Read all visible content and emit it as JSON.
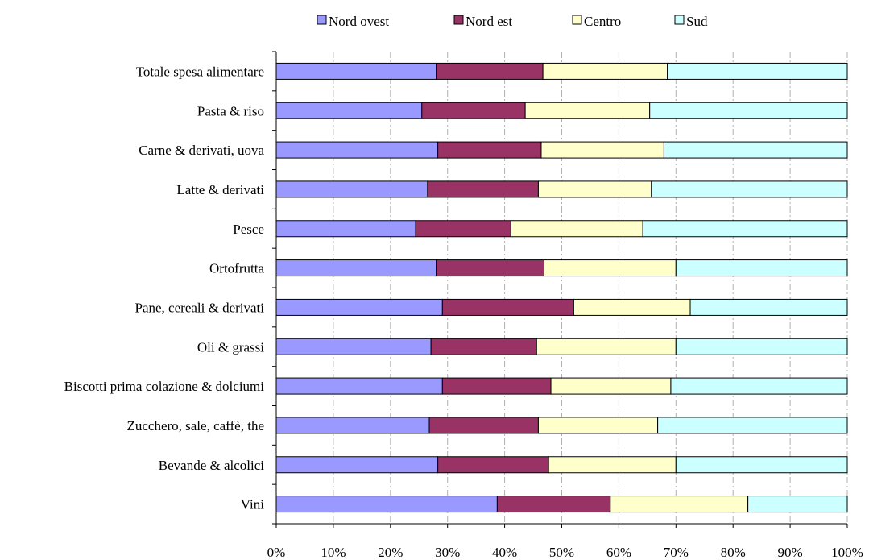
{
  "chart_data": {
    "type": "bar",
    "orientation": "horizontal",
    "stacked": "percent",
    "categories": [
      "Totale spesa alimentare",
      "Pasta & riso",
      "Carne & derivati, uova",
      "Latte & derivati",
      "Pesce",
      "Ortofrutta",
      "Pane, cereali & derivati",
      "Oli & grassi",
      "Biscotti prima colazione & dolciumi",
      "Zucchero, sale, caffè, the",
      "Bevande & alcolici",
      "Vini"
    ],
    "series": [
      {
        "name": "Nord ovest",
        "color": "#9999ff",
        "values": [
          28,
          25.5,
          28.3,
          26.5,
          24.4,
          28,
          29.1,
          27.1,
          29.1,
          26.8,
          28.3,
          38.7
        ]
      },
      {
        "name": "Nord est",
        "color": "#993366",
        "values": [
          18.7,
          18.1,
          18.1,
          19.4,
          16.7,
          18.9,
          23,
          18.5,
          19,
          19.1,
          19.4,
          19.8
        ]
      },
      {
        "name": "Centro",
        "color": "#ffffcc",
        "values": [
          21.8,
          21.8,
          21.5,
          19.8,
          23.1,
          23.1,
          20.4,
          24.4,
          21,
          20.9,
          22.3,
          24.1
        ]
      },
      {
        "name": "Sud",
        "color": "#ccffff",
        "values": [
          31.5,
          34.6,
          32.1,
          34.3,
          35.8,
          30,
          27.5,
          30,
          30.9,
          33.2,
          30,
          17.4
        ]
      }
    ],
    "xlim": [
      0,
      100
    ],
    "x_ticks": [
      "0%",
      "10%",
      "20%",
      "30%",
      "40%",
      "50%",
      "60%",
      "70%",
      "80%",
      "90%",
      "100%"
    ],
    "grid": "vertical dashed",
    "legend": "top"
  }
}
